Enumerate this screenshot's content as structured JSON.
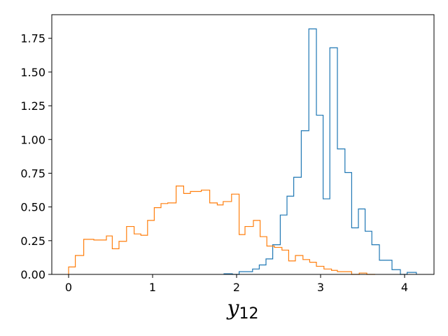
{
  "chart_data": {
    "type": "histogram-step",
    "xlabel": "y",
    "xlabel_subscript": "12",
    "ylabel": "",
    "xlim": [
      -0.2,
      4.35
    ],
    "ylim": [
      0,
      1.925
    ],
    "xticks": [
      0,
      1,
      2,
      3,
      4
    ],
    "xtick_labels": [
      "0",
      "1",
      "2",
      "3",
      "4"
    ],
    "yticks": [
      0.0,
      0.25,
      0.5,
      0.75,
      1.0,
      1.25,
      1.5,
      1.75
    ],
    "ytick_labels": [
      "0.00",
      "0.25",
      "0.50",
      "0.75",
      "1.00",
      "1.25",
      "1.50",
      "1.75"
    ],
    "grid": false,
    "legend": "none",
    "series": [
      {
        "color": "#1f77b4",
        "edges": [
          1.85,
          1.95,
          2.03,
          2.11,
          2.19,
          2.27,
          2.35,
          2.43,
          2.52,
          2.6,
          2.68,
          2.77,
          2.86,
          2.95,
          3.03,
          3.11,
          3.2,
          3.29,
          3.37,
          3.45,
          3.53,
          3.61,
          3.7,
          3.85,
          3.95,
          4.03,
          4.14
        ],
        "values": [
          0.005,
          0.0,
          0.02,
          0.02,
          0.04,
          0.07,
          0.115,
          0.22,
          0.44,
          0.58,
          0.72,
          1.065,
          1.82,
          1.18,
          0.56,
          1.68,
          0.93,
          0.755,
          0.345,
          0.485,
          0.32,
          0.22,
          0.105,
          0.035,
          0.0,
          0.015
        ]
      },
      {
        "color": "#ff7f0e",
        "edges": [
          0.0,
          0.08,
          0.18,
          0.3,
          0.45,
          0.52,
          0.6,
          0.69,
          0.78,
          0.86,
          0.94,
          1.02,
          1.1,
          1.18,
          1.28,
          1.37,
          1.45,
          1.58,
          1.68,
          1.77,
          1.84,
          1.94,
          2.03,
          2.1,
          2.2,
          2.28,
          2.36,
          2.45,
          2.54,
          2.62,
          2.7,
          2.79,
          2.87,
          2.95,
          3.04,
          3.13,
          3.2,
          3.28,
          3.37,
          3.46,
          3.55,
          3.65
        ],
        "values": [
          0.055,
          0.14,
          0.26,
          0.255,
          0.285,
          0.19,
          0.245,
          0.355,
          0.3,
          0.29,
          0.4,
          0.495,
          0.525,
          0.53,
          0.655,
          0.6,
          0.615,
          0.625,
          0.53,
          0.515,
          0.54,
          0.595,
          0.295,
          0.355,
          0.4,
          0.28,
          0.21,
          0.2,
          0.18,
          0.1,
          0.14,
          0.11,
          0.09,
          0.06,
          0.04,
          0.03,
          0.02,
          0.02,
          0.0,
          0.01,
          0.0
        ]
      }
    ]
  }
}
